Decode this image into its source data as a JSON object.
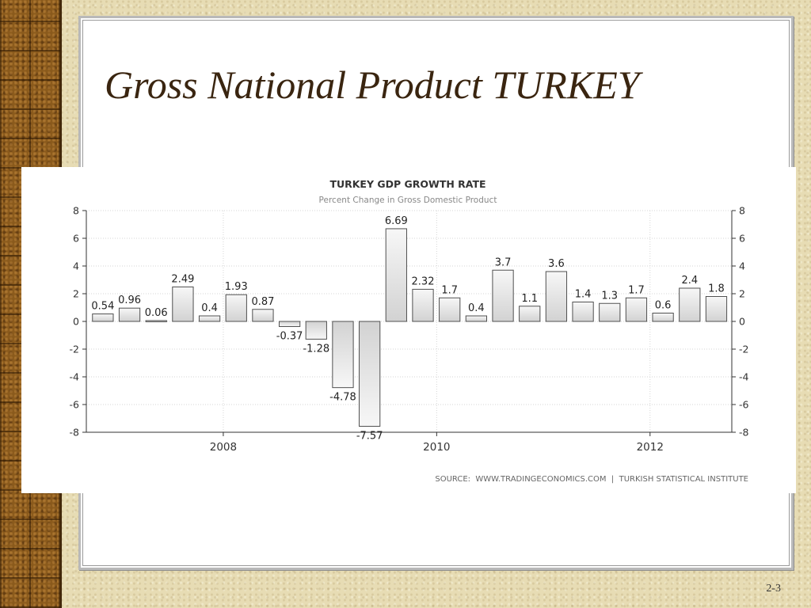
{
  "slide": {
    "title": "Gross National Product TURKEY",
    "page_number": "2-3"
  },
  "chart_data": {
    "type": "bar",
    "title": "TURKEY GDP GROWTH RATE",
    "subtitle": "Percent Change in Gross Domestic Product",
    "source": "SOURCE:  WWW.TRADINGECONOMICS.COM  |  TURKISH STATISTICAL INSTITUTE",
    "values": [
      0.54,
      0.96,
      0.06,
      2.49,
      0.4,
      1.93,
      0.87,
      -0.37,
      -1.28,
      -4.78,
      -7.57,
      6.69,
      2.32,
      1.7,
      0.4,
      3.7,
      1.1,
      3.6,
      1.4,
      1.3,
      1.7,
      0.6,
      2.4,
      1.8
    ],
    "labels": [
      "0.54",
      "0.96",
      "0.06",
      "2.49",
      "0.4",
      "1.93",
      "0.87",
      "-0.37",
      "-1.28",
      "-4.78",
      "-7.57",
      "6.69",
      "2.32",
      "1.7",
      "0.4",
      "3.7",
      "1.1",
      "3.6",
      "1.4",
      "1.3",
      "1.7",
      "0.6",
      "2.4",
      "1.8"
    ],
    "x_ticks": [
      "2008",
      "2010",
      "2012"
    ],
    "ylim": [
      -8,
      8
    ],
    "y_ticks": [
      "8",
      "6",
      "4",
      "2",
      "0",
      "-2",
      "-4",
      "-6",
      "-8"
    ],
    "grid": true,
    "bar_color": "#cfcfcf",
    "bar_border": "#505050"
  }
}
